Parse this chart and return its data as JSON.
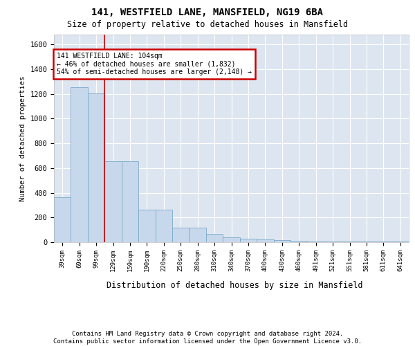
{
  "title1": "141, WESTFIELD LANE, MANSFIELD, NG19 6BA",
  "title2": "Size of property relative to detached houses in Mansfield",
  "xlabel": "Distribution of detached houses by size in Mansfield",
  "ylabel": "Number of detached properties",
  "footer": "Contains HM Land Registry data © Crown copyright and database right 2024.\nContains public sector information licensed under the Open Government Licence v3.0.",
  "bar_color": "#c8d8ec",
  "bar_edge_color": "#7aaac8",
  "vline_color": "#cc0000",
  "vline_x": 2.5,
  "annotation_box_edgecolor": "#cc0000",
  "annotation_line1": "141 WESTFIELD LANE: 104sqm",
  "annotation_line2": "← 46% of detached houses are smaller (1,832)",
  "annotation_line3": "54% of semi-detached houses are larger (2,148) →",
  "categories": [
    "39sqm",
    "69sqm",
    "99sqm",
    "129sqm",
    "159sqm",
    "190sqm",
    "220sqm",
    "250sqm",
    "280sqm",
    "310sqm",
    "340sqm",
    "370sqm",
    "400sqm",
    "430sqm",
    "460sqm",
    "491sqm",
    "521sqm",
    "551sqm",
    "581sqm",
    "611sqm",
    "641sqm"
  ],
  "values": [
    365,
    1252,
    1205,
    655,
    655,
    265,
    265,
    115,
    115,
    65,
    40,
    30,
    20,
    17,
    10,
    5,
    5,
    5,
    5,
    5,
    5
  ],
  "ylim": [
    0,
    1680
  ],
  "yticks": [
    0,
    200,
    400,
    600,
    800,
    1000,
    1200,
    1400,
    1600
  ],
  "bg_color": "#dde6f0",
  "grid_color": "#ffffff",
  "fig_bg": "#ffffff"
}
